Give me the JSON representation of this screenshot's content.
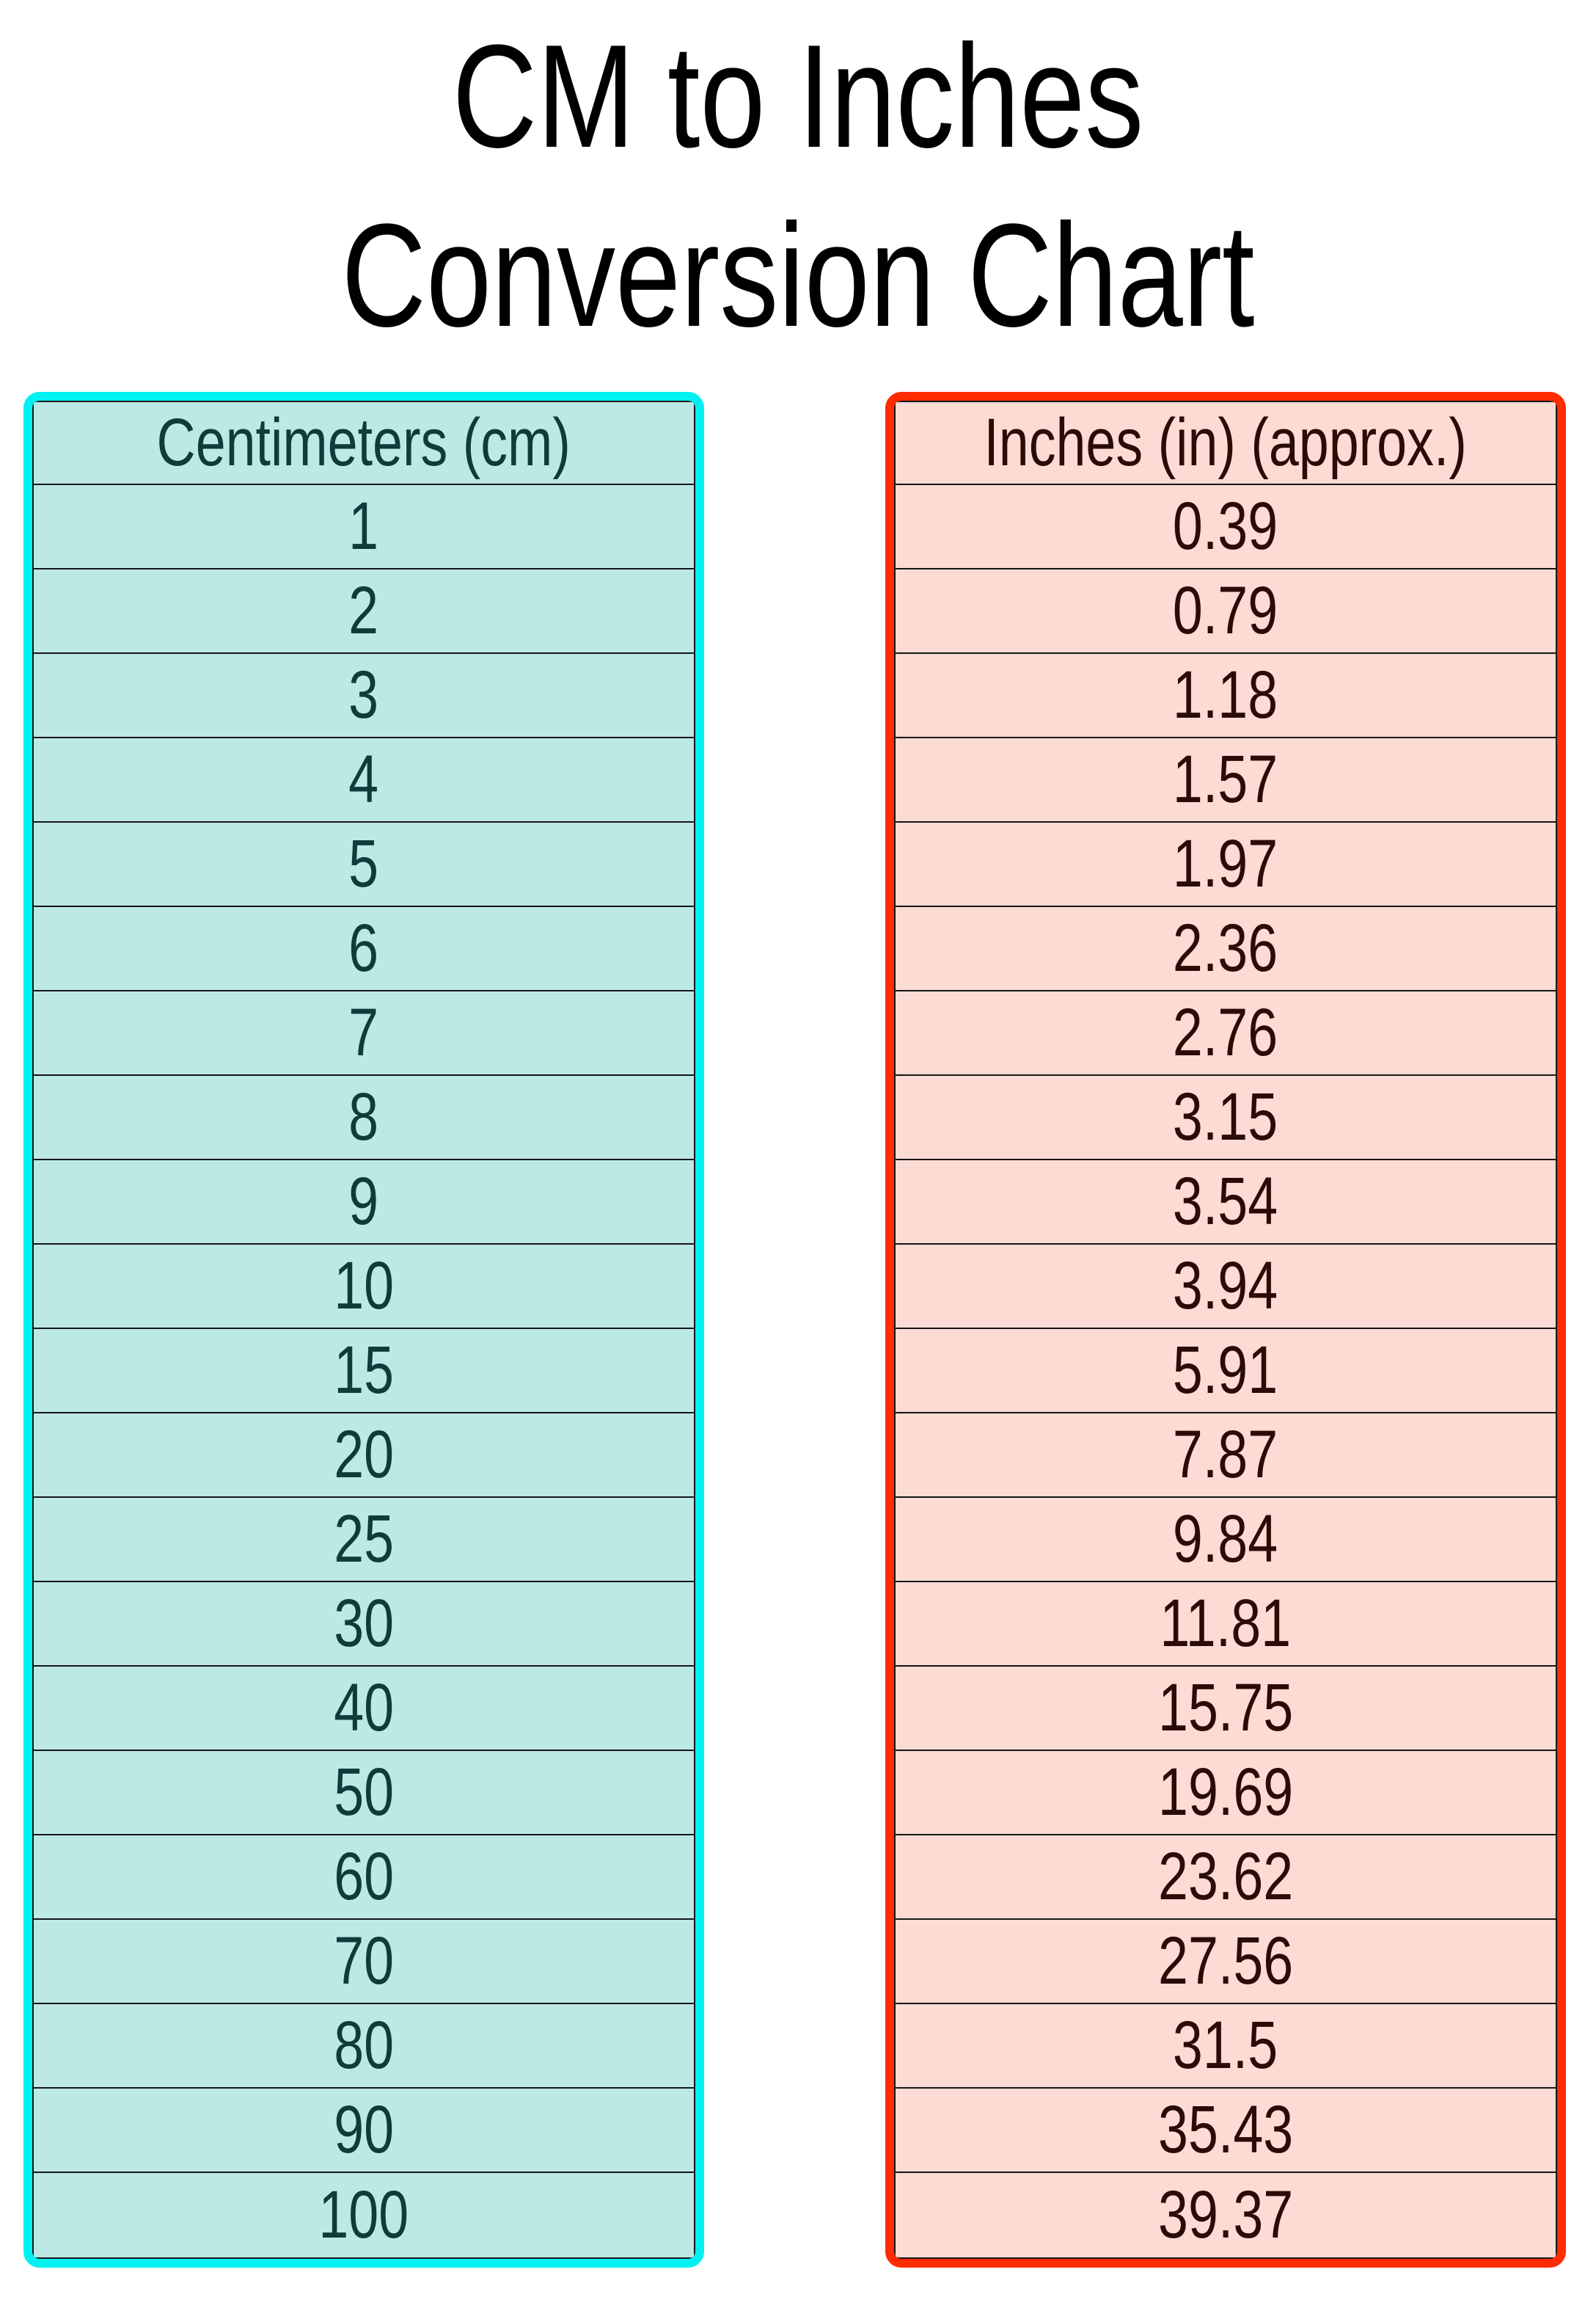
{
  "title": {
    "line1": "CM to Inches",
    "line2": "Conversion Chart"
  },
  "tables": {
    "cm": {
      "header": "Centimeters (cm)",
      "values": [
        "1",
        "2",
        "3",
        "4",
        "5",
        "6",
        "7",
        "8",
        "9",
        "10",
        "15",
        "20",
        "25",
        "30",
        "40",
        "50",
        "60",
        "70",
        "80",
        "90",
        "100"
      ]
    },
    "inches": {
      "header": "Inches (in) (approx.)",
      "values": [
        "0.39",
        "0.79",
        "1.18",
        "1.57",
        "1.97",
        "2.36",
        "2.76",
        "3.15",
        "3.54",
        "3.94",
        "5.91",
        "7.87",
        "9.84",
        "11.81",
        "15.75",
        "19.69",
        "23.62",
        "27.56",
        "31.5",
        "35.43",
        "39.37"
      ]
    }
  },
  "colors": {
    "cm_border": "#00f1f1",
    "cm_background": "#bde9e5",
    "cm_text": "#0e3c3a",
    "inches_border": "#ff2b01",
    "inches_background": "#fbdbd4",
    "inches_text": "#2b0b05",
    "divider": "#161616",
    "title": "#000000"
  },
  "chart_data": {
    "type": "table",
    "title": "CM to Inches Conversion Chart",
    "columns": [
      "Centimeters (cm)",
      "Inches (in) (approx.)"
    ],
    "centimeters": [
      1,
      2,
      3,
      4,
      5,
      6,
      7,
      8,
      9,
      10,
      15,
      20,
      25,
      30,
      40,
      50,
      60,
      70,
      80,
      90,
      100
    ],
    "inches": [
      0.39,
      0.79,
      1.18,
      1.57,
      1.97,
      2.36,
      2.76,
      3.15,
      3.54,
      3.94,
      5.91,
      7.87,
      9.84,
      11.81,
      15.75,
      19.69,
      23.62,
      27.56,
      31.5,
      35.43,
      39.37
    ]
  }
}
